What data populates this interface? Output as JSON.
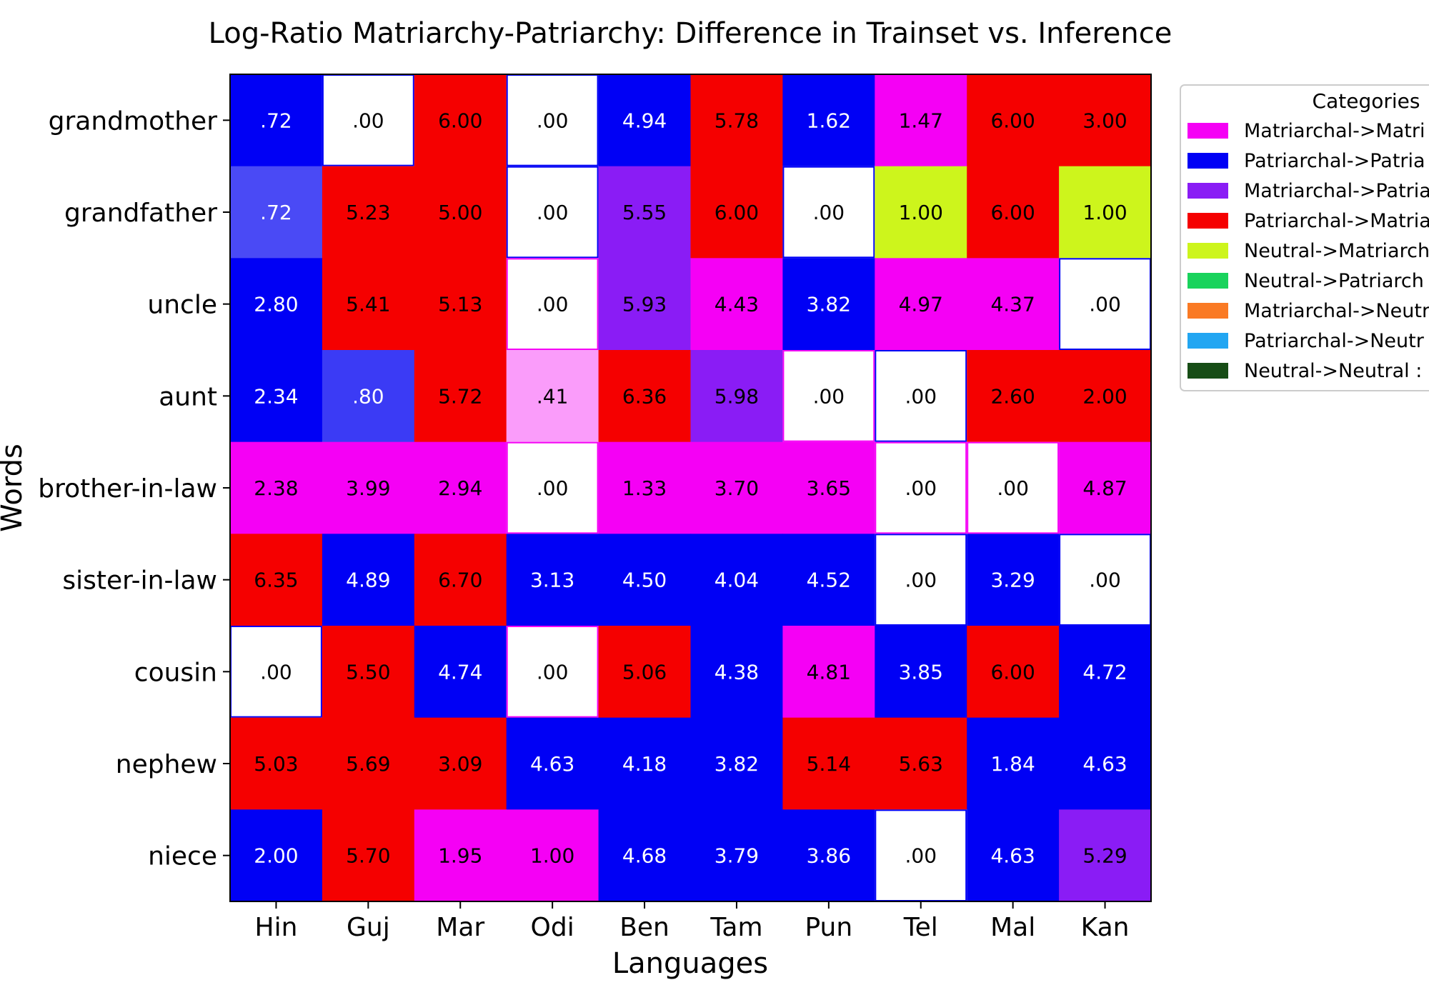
{
  "chart_data": {
    "type": "heatmap",
    "title": "Log-Ratio Matriarchy-Patriarchy: Difference in Trainset vs. Inference",
    "xlabel": "Languages",
    "ylabel": "Words",
    "columns": [
      "Hin",
      "Guj",
      "Mar",
      "Odi",
      "Ben",
      "Tam",
      "Pun",
      "Tel",
      "Mal",
      "Kan"
    ],
    "rows": [
      "grandmother",
      "grandfather",
      "uncle",
      "aunt",
      "brother-in-law",
      "sister-in-law",
      "cousin",
      "nephew",
      "niece"
    ],
    "values": [
      [
        ".72",
        ".00",
        "6.00",
        ".00",
        "4.94",
        "5.78",
        "1.62",
        "1.47",
        "6.00",
        "3.00"
      ],
      [
        ".72",
        "5.23",
        "5.00",
        ".00",
        "5.55",
        "6.00",
        ".00",
        "1.00",
        "6.00",
        "1.00"
      ],
      [
        "2.80",
        "5.41",
        "5.13",
        ".00",
        "5.93",
        "4.43",
        "3.82",
        "4.97",
        "4.37",
        ".00"
      ],
      [
        "2.34",
        ".80",
        "5.72",
        ".41",
        "6.36",
        "5.98",
        ".00",
        ".00",
        "2.60",
        "2.00"
      ],
      [
        "2.38",
        "3.99",
        "2.94",
        ".00",
        "1.33",
        "3.70",
        "3.65",
        ".00",
        ".00",
        "4.87"
      ],
      [
        "6.35",
        "4.89",
        "6.70",
        "3.13",
        "4.50",
        "4.04",
        "4.52",
        ".00",
        "3.29",
        ".00"
      ],
      [
        ".00",
        "5.50",
        "4.74",
        ".00",
        "5.06",
        "4.38",
        "4.81",
        "3.85",
        "6.00",
        "4.72"
      ],
      [
        "5.03",
        "5.69",
        "3.09",
        "4.63",
        "4.18",
        "3.82",
        "5.14",
        "5.63",
        "1.84",
        "4.63"
      ],
      [
        "2.00",
        "5.70",
        "1.95",
        "1.00",
        "4.68",
        "3.79",
        "3.86",
        ".00",
        "4.63",
        "5.29"
      ]
    ],
    "cell_colors": [
      [
        "#0000f5",
        "#ffffff",
        "#f50000",
        "#ffffff",
        "#0000f5",
        "#f50000",
        "#0000f5",
        "#f500f5",
        "#f50000",
        "#f50000"
      ],
      [
        "#4a4af5",
        "#f50000",
        "#f50000",
        "#ffffff",
        "#8a1cf5",
        "#f50000",
        "#ffffff",
        "#cdf51c",
        "#f50000",
        "#cdf51c"
      ],
      [
        "#0000f5",
        "#f50000",
        "#f50000",
        "#ffffff",
        "#8a1cf5",
        "#f500f5",
        "#0000f5",
        "#f500f5",
        "#f500f5",
        "#ffffff"
      ],
      [
        "#0000f5",
        "#3b3bf5",
        "#f50000",
        "#fa9cfa",
        "#f50000",
        "#8a1cf5",
        "#ffffff",
        "#ffffff",
        "#f50000",
        "#f50000"
      ],
      [
        "#f500f5",
        "#f500f5",
        "#f500f5",
        "#ffffff",
        "#f500f5",
        "#f500f5",
        "#f500f5",
        "#ffffff",
        "#ffffff",
        "#f500f5"
      ],
      [
        "#f50000",
        "#0000f5",
        "#f50000",
        "#0000f5",
        "#0000f5",
        "#0000f5",
        "#0000f5",
        "#ffffff",
        "#0000f5",
        "#ffffff"
      ],
      [
        "#ffffff",
        "#f50000",
        "#0000f5",
        "#ffffff",
        "#f50000",
        "#0000f5",
        "#f500f5",
        "#0000f5",
        "#f50000",
        "#0000f5"
      ],
      [
        "#f50000",
        "#f50000",
        "#f50000",
        "#0000f5",
        "#0000f5",
        "#0000f5",
        "#f50000",
        "#f50000",
        "#0000f5",
        "#0000f5"
      ],
      [
        "#0000f5",
        "#f50000",
        "#f500f5",
        "#f500f5",
        "#0000f5",
        "#0000f5",
        "#0000f5",
        "#ffffff",
        "#0000f5",
        "#8a1cf5"
      ]
    ],
    "white_cell_borders": [
      [
        null,
        "#0000f5",
        null,
        "#0000f5",
        null,
        null,
        null,
        null,
        null,
        null
      ],
      [
        null,
        null,
        null,
        "#0000f5",
        null,
        null,
        "#0000f5",
        null,
        null,
        null
      ],
      [
        null,
        null,
        null,
        "#f500f5",
        null,
        null,
        null,
        null,
        null,
        "#0000f5"
      ],
      [
        null,
        null,
        null,
        null,
        null,
        null,
        "#f500f5",
        "#0000f5",
        null,
        null
      ],
      [
        null,
        null,
        null,
        "#f500f5",
        null,
        null,
        null,
        "#f500f5",
        "#f500f5",
        null
      ],
      [
        null,
        null,
        null,
        null,
        null,
        null,
        null,
        "#0000f5",
        null,
        "#0000f5"
      ],
      [
        "#0000f5",
        null,
        null,
        "#f500f5",
        null,
        null,
        null,
        null,
        null,
        null
      ],
      [
        null,
        null,
        null,
        null,
        null,
        null,
        null,
        null,
        null,
        null
      ],
      [
        null,
        null,
        null,
        null,
        null,
        null,
        null,
        "#0000f5",
        null,
        null
      ]
    ],
    "legend": {
      "title": "Categories",
      "placement": "outside-right",
      "entries": [
        {
          "label": "Matriarchal->Matri",
          "color": "#f500f5"
        },
        {
          "label": "Patriarchal->Patria",
          "color": "#0000f5"
        },
        {
          "label": "Matriarchal->Patria",
          "color": "#8a1cf5"
        },
        {
          "label": "Patriarchal->Matria",
          "color": "#f50000"
        },
        {
          "label": "Neutral->Matriarch",
          "color": "#cdf51c"
        },
        {
          "label": "Neutral->Patriarch",
          "color": "#19d35c"
        },
        {
          "label": "Matriarchal->Neutr",
          "color": "#fa7a24"
        },
        {
          "label": "Patriarchal->Neutr",
          "color": "#22a6f2"
        },
        {
          "label": "Neutral->Neutral :",
          "color": "#174d16"
        }
      ]
    },
    "grid": false
  }
}
